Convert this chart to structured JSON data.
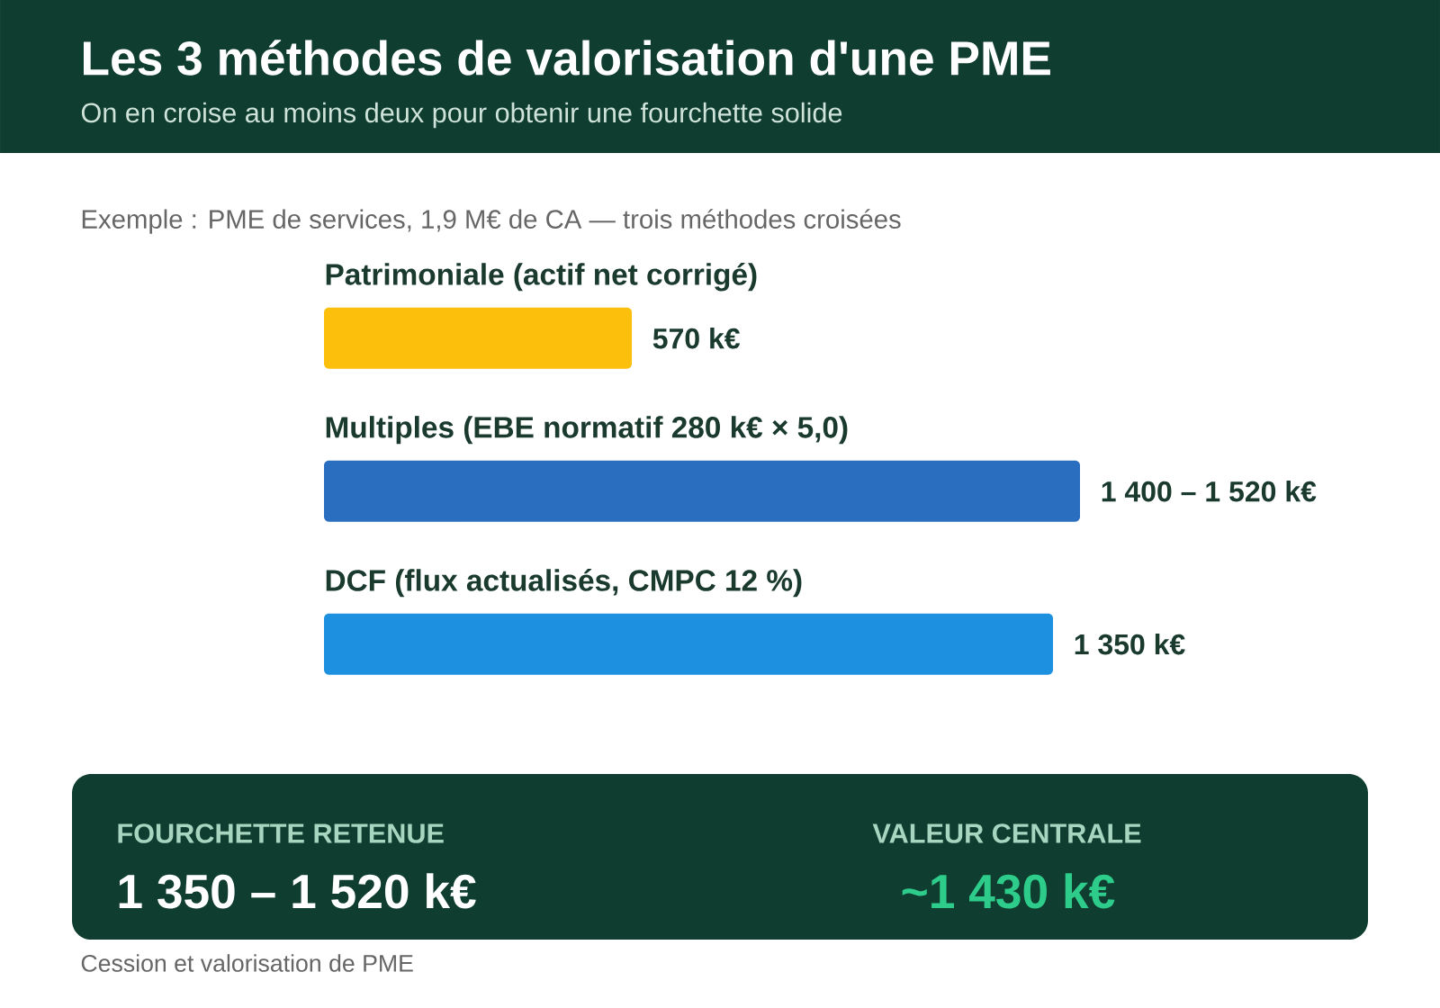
{
  "chart_data": {
    "type": "bar",
    "orientation": "horizontal",
    "title": "Les 3 méthodes de valorisation d'une PME",
    "subtitle": "On en croise au moins deux pour obtenir une fourchette solide",
    "categories": [
      "Patrimoniale (actif net corrigé)",
      "Multiples (EBE normatif 280 k€ × 5,0)",
      "DCF (flux actualisés, CMPC 12 %)"
    ],
    "values": [
      570,
      1400,
      1350
    ],
    "colors": [
      "#fbbf0c",
      "#2a6ebf",
      "#1e90e0"
    ],
    "value_labels": [
      "570 k€",
      "1 400 – 1 520 k€",
      "1 350 k€"
    ],
    "annotations": [
      "Exemple : PME de services, 1,9 M€ de CA — trois méthodes croisées",
      "FOURCHETTE RETENUE",
      "1 350 – 1 520 k€",
      "VALEUR CENTRALE",
      "~1 430 k€",
      "Cession et valorisation de PME"
    ]
  }
}
